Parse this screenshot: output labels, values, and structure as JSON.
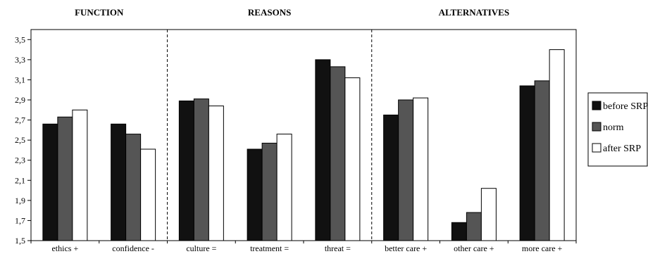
{
  "chart_data": {
    "type": "bar",
    "groups": [
      {
        "label": "FUNCTION",
        "categories": [
          "ethics +",
          "confidence -"
        ]
      },
      {
        "label": "REASONS",
        "categories": [
          "culture =",
          "treatment =",
          "threat ="
        ]
      },
      {
        "label": "ALTERNATIVES",
        "categories": [
          "better care +",
          "other care +",
          "more care +"
        ]
      }
    ],
    "categories": [
      "ethics +",
      "confidence -",
      "culture =",
      "treatment =",
      "threat =",
      "better care +",
      "other care +",
      "more care +"
    ],
    "series": [
      {
        "name": "before SRP",
        "color": "#111111",
        "values": [
          2.66,
          2.66,
          2.89,
          2.41,
          3.3,
          2.75,
          1.68,
          3.04
        ]
      },
      {
        "name": "norm",
        "color": "#555555",
        "values": [
          2.73,
          2.56,
          2.91,
          2.47,
          3.23,
          2.9,
          1.78,
          3.09
        ]
      },
      {
        "name": "after SRP",
        "color": "#ffffff",
        "values": [
          2.8,
          2.41,
          2.84,
          2.56,
          3.12,
          2.92,
          2.02,
          3.4
        ]
      }
    ],
    "yticks": [
      "1,5",
      "1,7",
      "1,9",
      "2,1",
      "2,3",
      "2,5",
      "2,7",
      "2,9",
      "3,1",
      "3,3",
      "3,5"
    ],
    "ylim": [
      1.5,
      3.6
    ],
    "ytick_step": 0.2,
    "legend_position": "right",
    "grid": false,
    "separators": "dashed vertical lines between groups"
  }
}
